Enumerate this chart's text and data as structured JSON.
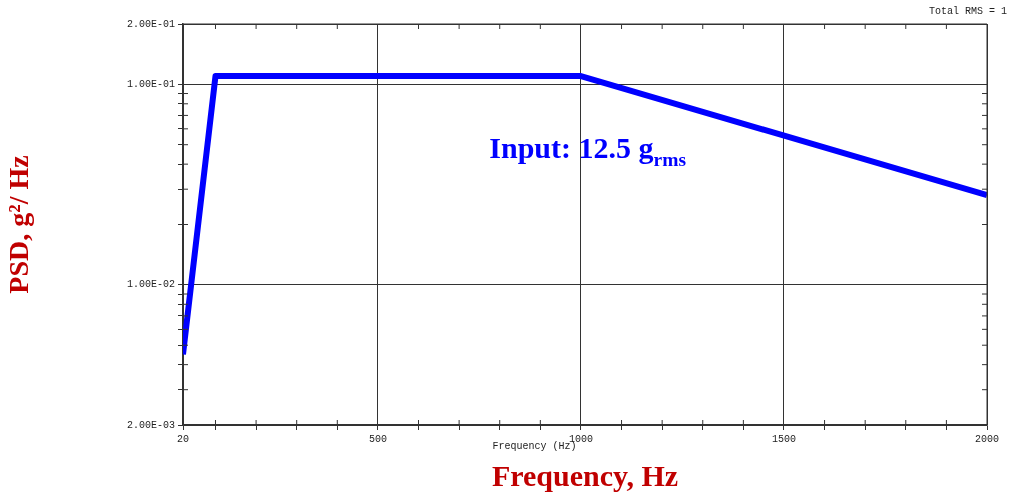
{
  "chart_data": {
    "type": "line",
    "xlabel": "Frequency, Hz",
    "ylabel": "PSD, g²/ Hz",
    "annotations": [
      "Input: 12.5 g$_{rms}$",
      "Frequency (Hz)",
      "Total RMS = 1"
    ],
    "x": [
      20,
      100,
      1000,
      2000
    ],
    "series": [
      {
        "color": "#0000ff",
        "values": [
          0.0045,
          0.11,
          0.11,
          0.028
        ]
      }
    ],
    "xlim": [
      20,
      2000
    ],
    "xticks": [
      20,
      {
        "value": 100,
        "label": null
      },
      {
        "value": 200,
        "label": null
      },
      {
        "value": 300,
        "label": null
      },
      {
        "value": 400,
        "label": null
      },
      500,
      {
        "value": 600,
        "label": null
      },
      {
        "value": 700,
        "label": null
      },
      {
        "value": 800,
        "label": null
      },
      {
        "value": 900,
        "label": null
      },
      1000,
      {
        "value": 1100,
        "label": null
      },
      {
        "value": 1200,
        "label": null
      },
      {
        "value": 1300,
        "label": null
      },
      {
        "value": 1400,
        "label": null
      },
      1500,
      {
        "value": 1600,
        "label": null
      },
      {
        "value": 1700,
        "label": null
      },
      {
        "value": 1800,
        "label": null
      },
      {
        "value": 1900,
        "label": null
      },
      2000
    ],
    "ylim": [
      0.002,
      0.2
    ],
    "yticks": [
      {
        "value": 0.002,
        "label": "2.00E-03"
      },
      {
        "value": 0.003,
        "label": null
      },
      {
        "value": 0.004,
        "label": null
      },
      {
        "value": 0.005,
        "label": null
      },
      {
        "value": 0.006,
        "label": null
      },
      {
        "value": 0.007,
        "label": null
      },
      {
        "value": 0.008,
        "label": null
      },
      {
        "value": 0.009,
        "label": null
      },
      {
        "value": 0.01,
        "label": "1.00E-02"
      },
      {
        "value": 0.02,
        "label": null
      },
      {
        "value": 0.03,
        "label": null
      },
      {
        "value": 0.04,
        "label": null
      },
      {
        "value": 0.05,
        "label": null
      },
      {
        "value": 0.06,
        "label": null
      },
      {
        "value": 0.07,
        "label": null
      },
      {
        "value": 0.08,
        "label": null
      },
      {
        "value": 0.09,
        "label": null
      },
      {
        "value": 0.1,
        "label": "1.00E-01"
      },
      {
        "value": 0.2,
        "label": "2.00E-01"
      }
    ],
    "log": "y",
    "grid": true,
    "legend": false,
    "marker": "none",
    "line_style": "solid"
  }
}
